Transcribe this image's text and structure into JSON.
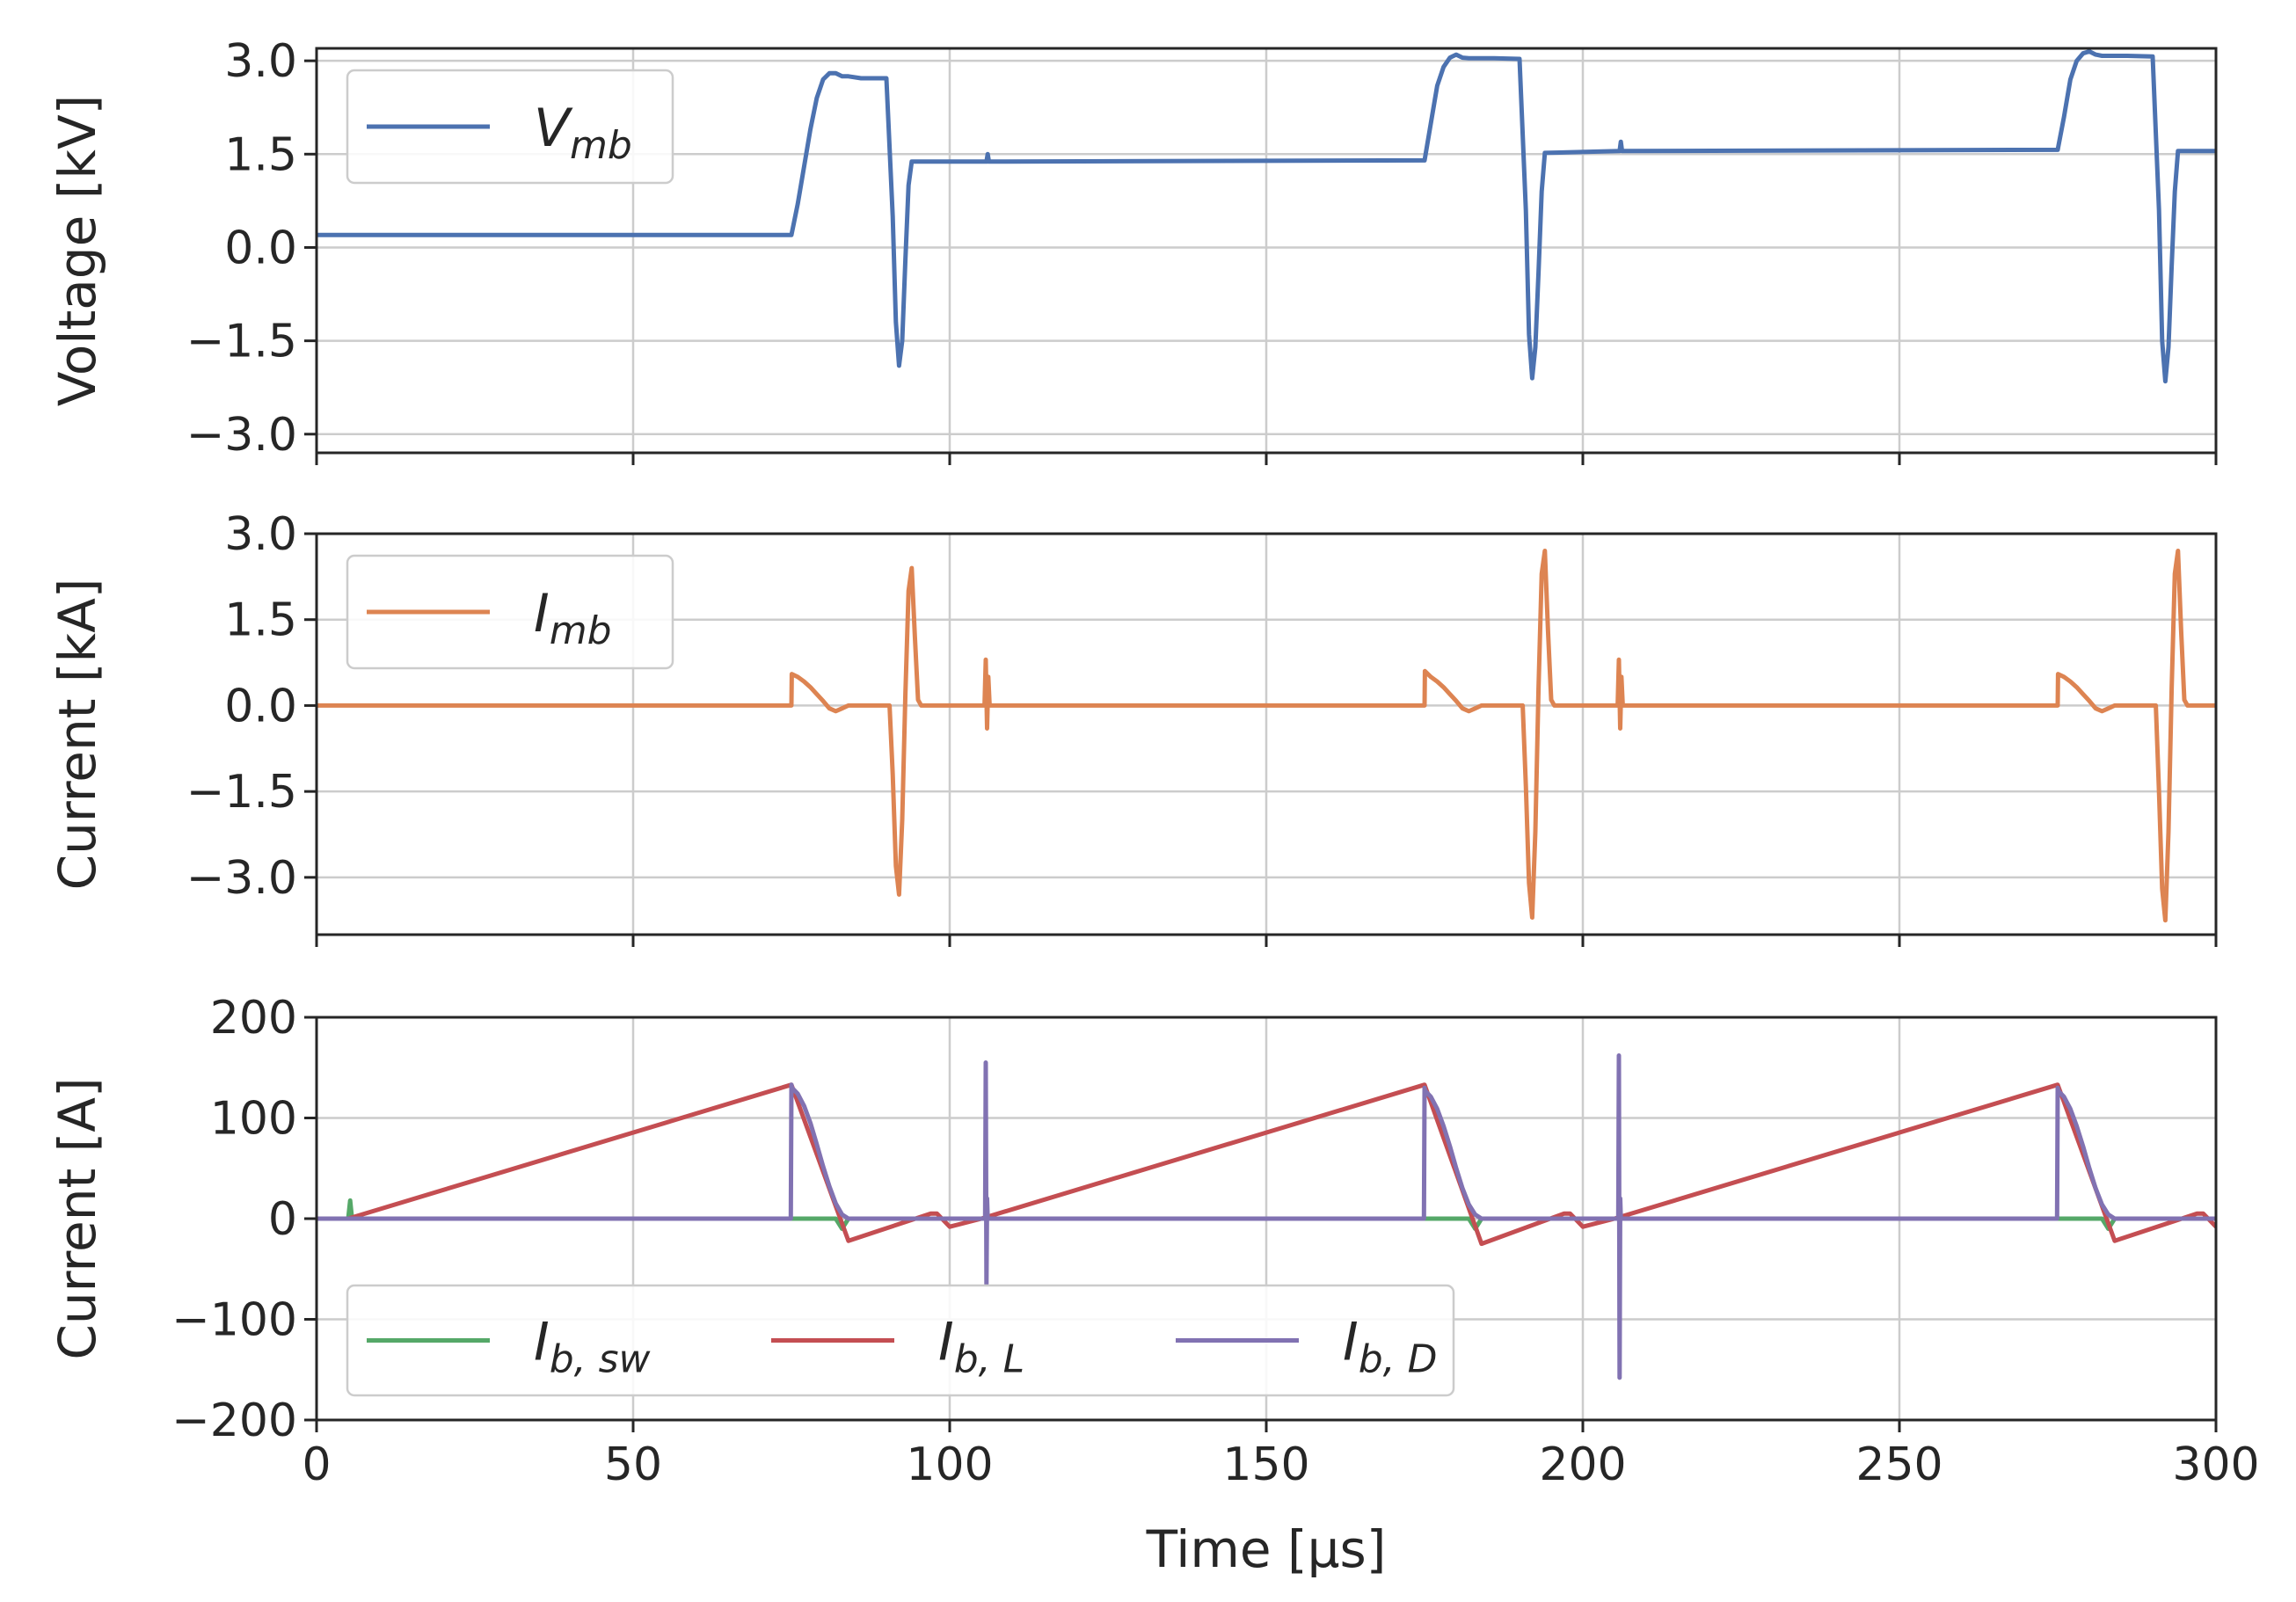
{
  "chart_data": [
    {
      "type": "line",
      "ylabel": "Voltage [kV]",
      "xlabel": "",
      "xlim": [
        0,
        300
      ],
      "ylim": [
        -3.3,
        3.2
      ],
      "yticks": [
        -3.0,
        -1.5,
        0.0,
        1.5,
        3.0
      ],
      "ytick_labels": [
        "−3.0",
        "−1.5",
        "0.0",
        "1.5",
        "3.0"
      ],
      "xticks": [
        0,
        50,
        100,
        150,
        200,
        250,
        300
      ],
      "grid": true,
      "legend_position": "upper-left",
      "series": [
        {
          "name": "V_mb",
          "label_main": "V",
          "label_sub": "mb",
          "color": "#4c72b0",
          "x": [
            0,
            75,
            76,
            77,
            78,
            79,
            80,
            81,
            82,
            83,
            84,
            86,
            90,
            91,
            91.5,
            92,
            92.5,
            93,
            93.5,
            94,
            94.5,
            105.8,
            106,
            106.2,
            175,
            176,
            177,
            178,
            179,
            180,
            181,
            182,
            186,
            190,
            191,
            191.5,
            192,
            192.5,
            193,
            193.5,
            194,
            205.8,
            206,
            206.2,
            275,
            276,
            277,
            278,
            279,
            280,
            281,
            282,
            286,
            290,
            291,
            291.5,
            292,
            292.5,
            293,
            293.5,
            294,
            300
          ],
          "y": [
            0.2,
            0.2,
            0.7,
            1.3,
            1.9,
            2.4,
            2.7,
            2.8,
            2.8,
            2.75,
            2.75,
            2.72,
            2.72,
            0.5,
            -1.2,
            -1.9,
            -1.5,
            -0.2,
            1.0,
            1.38,
            1.38,
            1.38,
            1.5,
            1.38,
            1.4,
            2.0,
            2.6,
            2.9,
            3.05,
            3.1,
            3.05,
            3.04,
            3.04,
            3.03,
            0.6,
            -1.4,
            -2.1,
            -1.6,
            -0.4,
            0.9,
            1.52,
            1.55,
            1.7,
            1.55,
            1.57,
            2.1,
            2.7,
            3.0,
            3.12,
            3.15,
            3.1,
            3.08,
            3.08,
            3.07,
            0.6,
            -1.5,
            -2.15,
            -1.6,
            -0.3,
            0.9,
            1.55,
            1.55
          ]
        }
      ]
    },
    {
      "type": "line",
      "ylabel": "Current [kA]",
      "xlabel": "",
      "xlim": [
        0,
        300
      ],
      "ylim": [
        -4.0,
        3.0
      ],
      "yticks": [
        -3.0,
        -1.5,
        0.0,
        1.5,
        3.0
      ],
      "ytick_labels": [
        "−3.0",
        "−1.5",
        "0.0",
        "1.5",
        "3.0"
      ],
      "xticks": [
        0,
        50,
        100,
        150,
        200,
        250,
        300
      ],
      "grid": true,
      "legend_position": "upper-left",
      "series": [
        {
          "name": "I_mb",
          "label_main": "I",
          "label_sub": "mb",
          "color": "#dd8452",
          "x": [
            0,
            75,
            75.05,
            76,
            77,
            78,
            79,
            80,
            81,
            82,
            83,
            84,
            90.5,
            91,
            91.5,
            92,
            92.5,
            93,
            93.5,
            94,
            94.5,
            95,
            95.5,
            105.5,
            105.7,
            105.9,
            106.1,
            106.3,
            175,
            175.05,
            176,
            177,
            178,
            179,
            180,
            181,
            182,
            183,
            184,
            190.5,
            191,
            191.5,
            192,
            192.5,
            193,
            193.5,
            194,
            194.5,
            195,
            195.5,
            205.5,
            205.7,
            205.9,
            206.1,
            206.3,
            275,
            275.05,
            276,
            277,
            278,
            279,
            280,
            281,
            282,
            283,
            284,
            290.5,
            291,
            291.5,
            292,
            292.5,
            293,
            293.5,
            294,
            294.5,
            295,
            295.5,
            300
          ],
          "y": [
            0,
            0,
            0.55,
            0.5,
            0.42,
            0.32,
            0.2,
            0.08,
            -0.05,
            -0.1,
            -0.05,
            0,
            0,
            -1.2,
            -2.8,
            -3.3,
            -2.0,
            0.2,
            2.0,
            2.4,
            1.2,
            0.1,
            0,
            0,
            0.8,
            -0.4,
            0.5,
            0,
            0,
            0.6,
            0.5,
            0.42,
            0.32,
            0.2,
            0.08,
            -0.05,
            -0.1,
            -0.05,
            0,
            0,
            -1.4,
            -3.1,
            -3.7,
            -2.2,
            0.3,
            2.3,
            2.7,
            1.3,
            0.1,
            0,
            0,
            0.8,
            -0.4,
            0.5,
            0,
            0,
            0.55,
            0.5,
            0.42,
            0.32,
            0.2,
            0.08,
            -0.05,
            -0.1,
            -0.05,
            0,
            0,
            -1.5,
            -3.2,
            -3.75,
            -2.2,
            0.3,
            2.3,
            2.7,
            1.3,
            0.1,
            0,
            0
          ]
        }
      ]
    },
    {
      "type": "line",
      "ylabel": "Current [A]",
      "xlabel": "Time [μs]",
      "xlim": [
        0,
        300
      ],
      "ylim": [
        -200,
        200
      ],
      "yticks": [
        -200,
        -100,
        0,
        100,
        200
      ],
      "ytick_labels": [
        "−200",
        "−100",
        "0",
        "100",
        "200"
      ],
      "xticks": [
        0,
        50,
        100,
        150,
        200,
        250,
        300
      ],
      "xtick_labels": [
        "0",
        "50",
        "100",
        "150",
        "200",
        "250",
        "300"
      ],
      "grid": true,
      "legend_position": "lower-left",
      "series": [
        {
          "name": "I_b,sw",
          "label_main": "I",
          "label_sub": "b, sw",
          "color": "#55a868",
          "x": [
            0,
            5,
            5.3,
            5.6,
            6,
            75,
            82,
            83,
            84,
            175,
            182,
            183,
            184,
            275,
            282,
            283,
            284,
            300
          ],
          "y": [
            0,
            0,
            18,
            0,
            0,
            0,
            0,
            -10,
            0,
            0,
            0,
            -10,
            0,
            0,
            0,
            -10,
            0,
            0
          ]
        },
        {
          "name": "I_b,L",
          "label_main": "I",
          "label_sub": "b, L",
          "color": "#c44e52",
          "x": [
            0,
            5,
            75,
            84,
            97,
            98,
            100,
            105,
            175,
            184,
            197,
            198,
            200,
            205,
            275,
            284,
            297,
            298,
            300
          ],
          "y": [
            0,
            0,
            133,
            -22,
            5,
            5,
            -8,
            0,
            133,
            -25,
            5,
            5,
            -8,
            0,
            133,
            -22,
            5,
            5,
            -8
          ]
        },
        {
          "name": "I_b,D",
          "label_main": "I",
          "label_sub": "b, D",
          "color": "#8172b2",
          "x": [
            0,
            74.9,
            75,
            75.1,
            76,
            77,
            78,
            79,
            80,
            81,
            82,
            83,
            84,
            105.6,
            105.7,
            105.8,
            105.9,
            106.0,
            174.9,
            175,
            175.1,
            176,
            177,
            178,
            179,
            180,
            181,
            182,
            183,
            184,
            205.6,
            205.7,
            205.8,
            205.9,
            206.0,
            274.9,
            275,
            275.1,
            276,
            277,
            278,
            279,
            280,
            281,
            282,
            283,
            284,
            300
          ],
          "y": [
            0,
            0,
            133,
            130,
            124,
            112,
            95,
            74,
            52,
            32,
            15,
            4,
            0,
            0,
            155,
            -65,
            20,
            0,
            0,
            130,
            127,
            121,
            109,
            92,
            72,
            50,
            30,
            14,
            4,
            0,
            0,
            162,
            -158,
            20,
            0,
            0,
            130,
            127,
            121,
            109,
            92,
            72,
            50,
            30,
            14,
            4,
            0,
            0
          ]
        }
      ]
    }
  ]
}
